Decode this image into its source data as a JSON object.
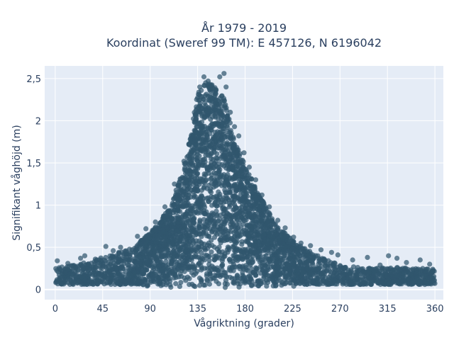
{
  "chart_data": {
    "type": "scatter",
    "title_line1": "År 1979 - 2019",
    "title_line2": "Koordinat (Sweref 99 TM): E 457126, N 6196042",
    "xlabel": "Vågriktning (grader)",
    "ylabel": "Signifikant våghöjd (m)",
    "xlim": [
      -10,
      368
    ],
    "ylim": [
      -0.12,
      2.65
    ],
    "x_ticks": [
      0,
      45,
      90,
      135,
      180,
      225,
      270,
      315,
      360
    ],
    "x_tick_labels": [
      "0",
      "45",
      "90",
      "135",
      "180",
      "225",
      "270",
      "315",
      "360"
    ],
    "y_ticks": [
      0,
      0.5,
      1,
      1.5,
      2,
      2.5
    ],
    "y_tick_labels": [
      "0",
      "0,5",
      "1",
      "1,5",
      "2",
      "2,5"
    ],
    "grid": true,
    "legend": "none",
    "colors": {
      "marker": "#31566d",
      "plot_background": "#e5ecf6",
      "grid": "#ffffff",
      "text": "#2a3f5f"
    },
    "envelope": {
      "description": "approximate upper envelope of the scatter cloud (direction in degrees, max wave height in m)",
      "points": [
        [
          0,
          0.3
        ],
        [
          20,
          0.33
        ],
        [
          45,
          0.42
        ],
        [
          60,
          0.48
        ],
        [
          75,
          0.55
        ],
        [
          90,
          0.7
        ],
        [
          100,
          0.85
        ],
        [
          110,
          1.05
        ],
        [
          120,
          1.4
        ],
        [
          128,
          1.85
        ],
        [
          135,
          2.35
        ],
        [
          142,
          2.5
        ],
        [
          150,
          2.45
        ],
        [
          160,
          2.3
        ],
        [
          170,
          1.8
        ],
        [
          180,
          1.5
        ],
        [
          190,
          1.25
        ],
        [
          200,
          1.0
        ],
        [
          210,
          0.78
        ],
        [
          225,
          0.62
        ],
        [
          240,
          0.5
        ],
        [
          255,
          0.42
        ],
        [
          270,
          0.33
        ],
        [
          290,
          0.3
        ],
        [
          315,
          0.3
        ],
        [
          340,
          0.3
        ],
        [
          360,
          0.28
        ]
      ]
    },
    "points": [
      [
        2,
        0.34
      ],
      [
        12,
        0.31
      ],
      [
        24,
        0.37
      ],
      [
        28,
        0.4
      ],
      [
        38,
        0.36
      ],
      [
        48,
        0.51
      ],
      [
        55,
        0.46
      ],
      [
        62,
        0.5
      ],
      [
        78,
        0.63
      ],
      [
        86,
        0.72
      ],
      [
        95,
        0.8
      ],
      [
        104,
        0.98
      ],
      [
        113,
        1.25
      ],
      [
        122,
        1.52
      ],
      [
        128,
        1.78
      ],
      [
        133,
        2.08
      ],
      [
        137,
        2.4
      ],
      [
        141,
        2.52
      ],
      [
        145,
        2.47
      ],
      [
        152,
        2.35
      ],
      [
        156,
        2.52
      ],
      [
        160,
        2.56
      ],
      [
        162,
        2.4
      ],
      [
        166,
        2.1
      ],
      [
        170,
        1.93
      ],
      [
        174,
        1.82
      ],
      [
        179,
        1.62
      ],
      [
        184,
        1.45
      ],
      [
        190,
        1.3
      ],
      [
        196,
        1.12
      ],
      [
        203,
        0.98
      ],
      [
        211,
        0.82
      ],
      [
        218,
        0.73
      ],
      [
        226,
        0.62
      ],
      [
        233,
        0.55
      ],
      [
        242,
        0.52
      ],
      [
        252,
        0.47
      ],
      [
        262,
        0.44
      ],
      [
        268,
        0.41
      ],
      [
        282,
        0.35
      ],
      [
        296,
        0.38
      ],
      [
        308,
        0.29
      ],
      [
        316,
        0.4
      ],
      [
        324,
        0.37
      ],
      [
        333,
        0.32
      ],
      [
        346,
        0.35
      ],
      [
        355,
        0.3
      ],
      [
        358,
        0.24
      ]
    ]
  }
}
